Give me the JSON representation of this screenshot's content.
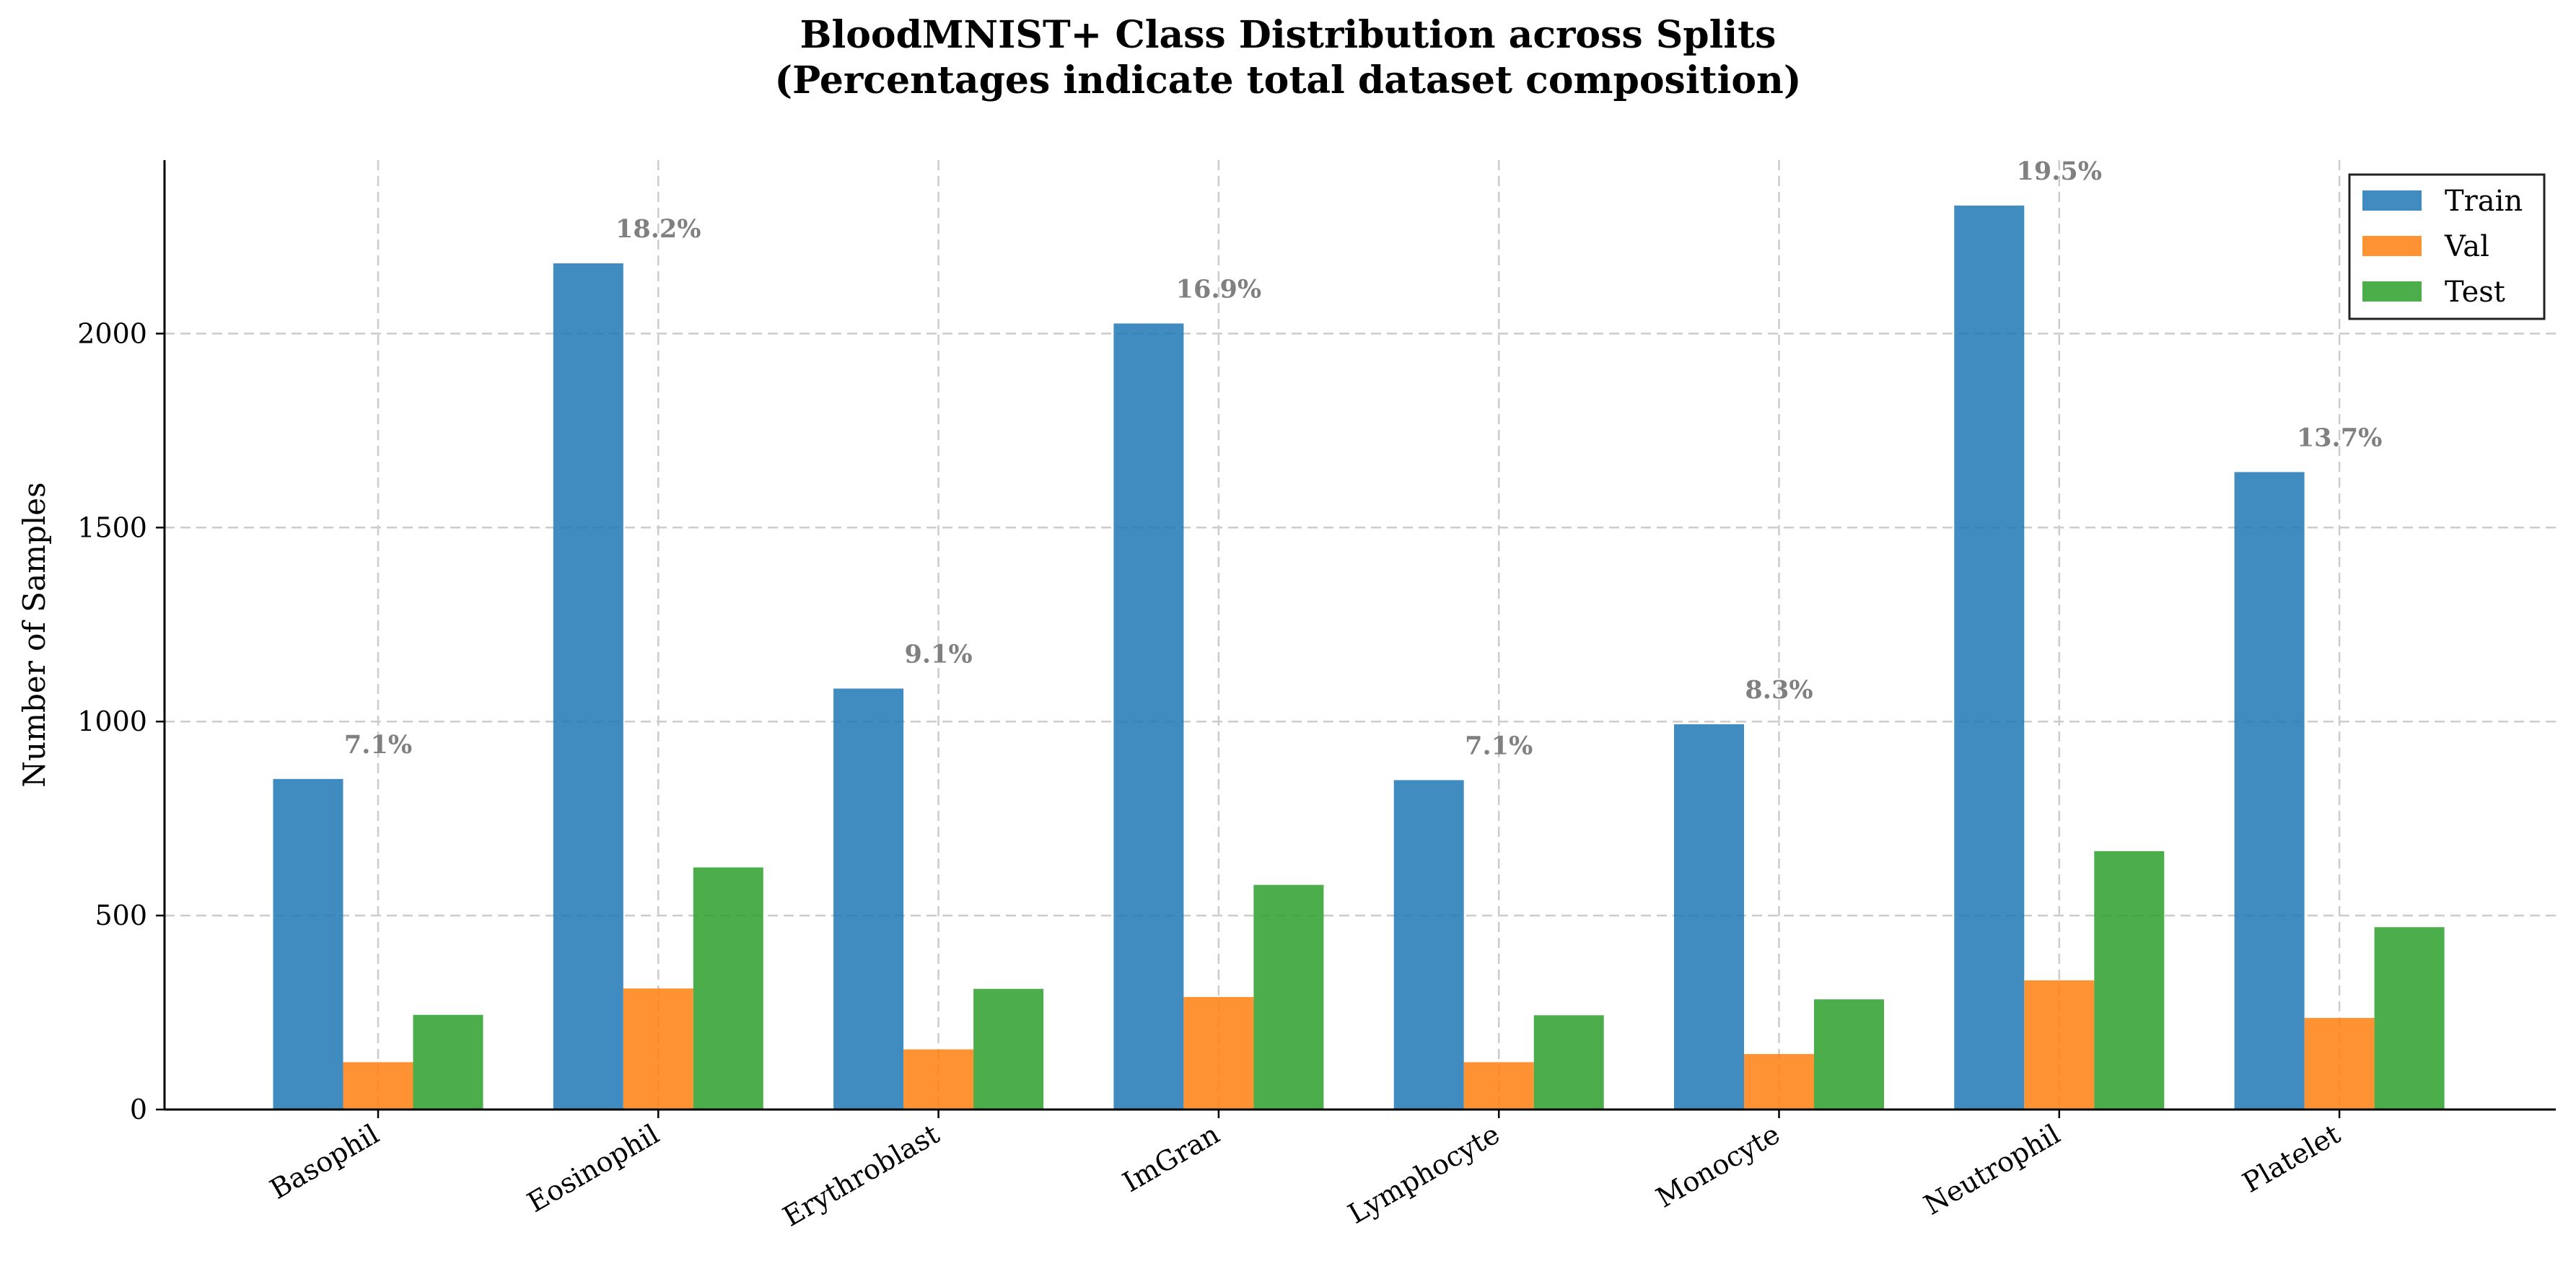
{
  "chart_data": {
    "type": "bar",
    "title": "BloodMNIST+ Class Distribution across Splits\n(Percentages indicate total dataset composition)",
    "xlabel": "",
    "ylabel": "Number of Samples",
    "categories": [
      "Basophil",
      "Eosinophil",
      "Erythroblast",
      "ImGran",
      "Lymphocyte",
      "Monocyte",
      "Neutrophil",
      "Platelet"
    ],
    "series": [
      {
        "name": "Train",
        "color": "#1f77b4",
        "values": [
          852,
          2181,
          1085,
          2026,
          849,
          993,
          2330,
          1643
        ]
      },
      {
        "name": "Val",
        "color": "#ff7f0e",
        "values": [
          122,
          312,
          155,
          290,
          122,
          143,
          333,
          236
        ]
      },
      {
        "name": "Test",
        "color": "#2ca02c",
        "values": [
          244,
          624,
          311,
          579,
          243,
          284,
          666,
          470
        ]
      }
    ],
    "annotations": [
      "7.1%",
      "18.2%",
      "9.1%",
      "16.9%",
      "7.1%",
      "8.3%",
      "19.5%",
      "13.7%"
    ],
    "yticks": [
      0,
      500,
      1000,
      1500,
      2000
    ],
    "ylim": [
      0,
      2447
    ],
    "grid": true,
    "legend_position": "top-right"
  }
}
